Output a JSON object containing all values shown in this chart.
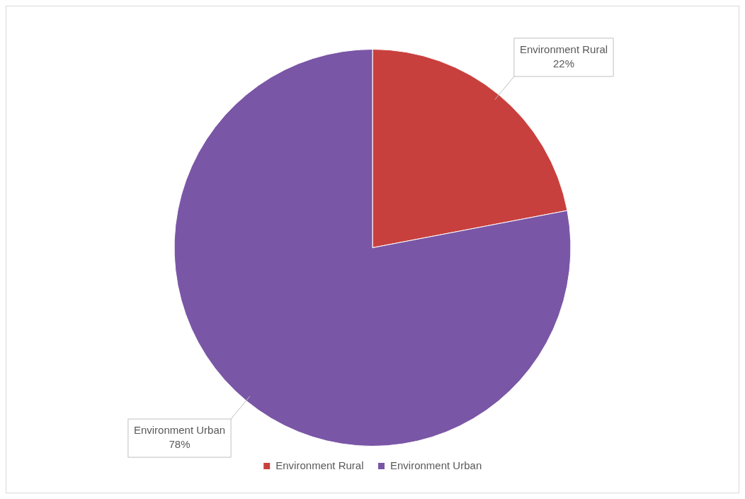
{
  "chart_data": {
    "type": "pie",
    "categories": [
      "Environment Rural",
      "Environment Urban"
    ],
    "values": [
      22,
      78
    ],
    "colors": [
      "#c8403d",
      "#7a56a6"
    ],
    "value_labels": [
      "22%",
      "78%"
    ],
    "legend": "bottom"
  }
}
